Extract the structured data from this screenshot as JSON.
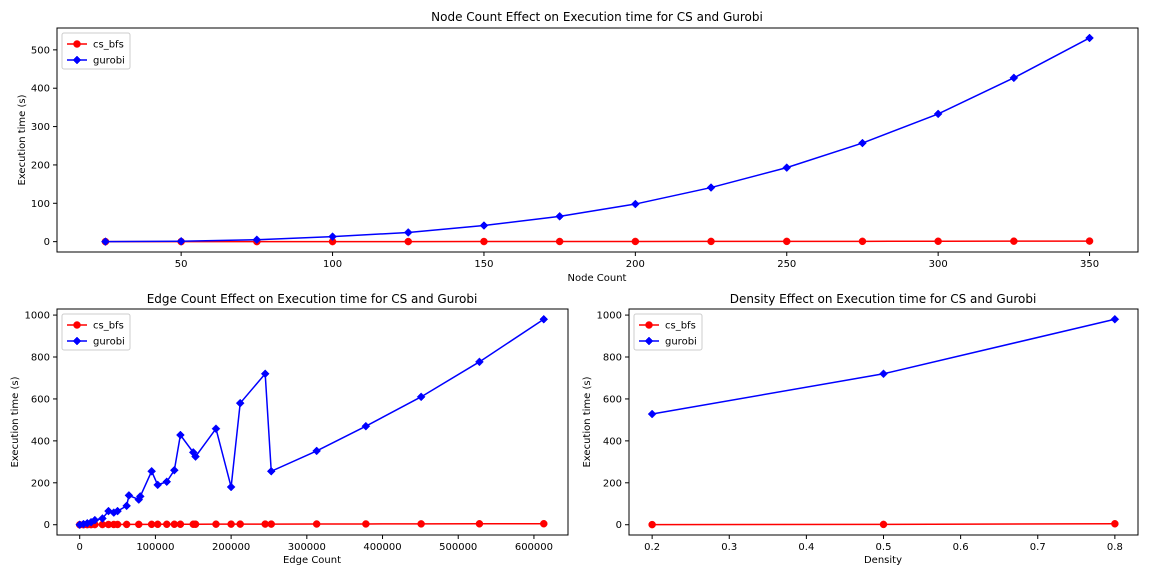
{
  "chart_data": [
    {
      "type": "line",
      "title": "Node Count Effect on Execution time for CS and Gurobi",
      "xlabel": "Node Count",
      "ylabel": "Execution time (s)",
      "xlim": [
        9,
        366
      ],
      "ylim": [
        -27,
        557
      ],
      "xticks": [
        50,
        100,
        150,
        200,
        250,
        300,
        350
      ],
      "yticks": [
        0,
        100,
        200,
        300,
        400,
        500
      ],
      "legend": "top-left",
      "series": [
        {
          "name": "cs_bfs",
          "color": "#ff0000",
          "marker": "circle",
          "x": [
            25,
            50,
            75,
            100,
            125,
            150,
            175,
            200,
            225,
            250,
            275,
            300,
            325,
            350
          ],
          "y": [
            0.02,
            0.05,
            0.1,
            0.15,
            0.2,
            0.3,
            0.4,
            0.5,
            0.6,
            0.7,
            0.8,
            1.0,
            1.2,
            1.5
          ]
        },
        {
          "name": "gurobi",
          "color": "#0000ff",
          "marker": "diamond",
          "x": [
            25,
            50,
            75,
            100,
            125,
            150,
            175,
            200,
            225,
            250,
            275,
            300,
            325,
            350
          ],
          "y": [
            0,
            1,
            5,
            13,
            24,
            42,
            66,
            98,
            141,
            193,
            257,
            333,
            427,
            531
          ]
        }
      ]
    },
    {
      "type": "line",
      "title": "Edge Count Effect on Execution time for CS and Gurobi",
      "xlabel": "Edge Count",
      "ylabel": "Execution time (s)",
      "xlim": [
        -30000,
        645000
      ],
      "ylim": [
        -49,
        1029
      ],
      "xticks": [
        0,
        100000,
        200000,
        300000,
        400000,
        500000,
        600000
      ],
      "yticks": [
        0,
        200,
        400,
        600,
        800,
        1000
      ],
      "legend": "top-left",
      "series": [
        {
          "name": "cs_bfs",
          "color": "#ff0000",
          "marker": "circle",
          "x": [
            0,
            5000,
            10000,
            15000,
            20000,
            30000,
            38000,
            45000,
            50000,
            62000,
            78000,
            95000,
            103000,
            115000,
            125000,
            133000,
            150000,
            153000,
            180000,
            200000,
            212000,
            245000,
            253000,
            313000,
            378000,
            451000,
            528000,
            613000
          ],
          "y": [
            0,
            0.2,
            0.4,
            0.5,
            0.7,
            0.9,
            1.1,
            1.2,
            1.3,
            1.5,
            1.7,
            1.9,
            2.0,
            2.1,
            2.2,
            2.3,
            2.4,
            2.4,
            2.6,
            2.8,
            2.9,
            3.1,
            3.0,
            3.4,
            3.7,
            4.0,
            4.4,
            4.8
          ]
        },
        {
          "name": "gurobi",
          "color": "#0000ff",
          "marker": "diamond",
          "x": [
            0,
            5000,
            10000,
            15000,
            20000,
            30000,
            38000,
            45000,
            50000,
            62000,
            65000,
            78000,
            80000,
            95000,
            103000,
            115000,
            125000,
            133000,
            150000,
            153000,
            180000,
            200000,
            212000,
            245000,
            253000,
            313000,
            378000,
            451000,
            528000,
            613000
          ],
          "y": [
            0,
            3,
            7,
            12,
            22,
            30,
            65,
            58,
            65,
            90,
            140,
            120,
            135,
            255,
            190,
            205,
            260,
            428,
            345,
            325,
            458,
            180,
            580,
            720,
            255,
            352,
            470,
            610,
            777,
            980
          ]
        }
      ]
    },
    {
      "type": "line",
      "title": "Density Effect on Execution time for CS and Gurobi",
      "xlabel": "Density",
      "ylabel": "Execution time (s)",
      "xlim": [
        0.17,
        0.83
      ],
      "ylim": [
        -49,
        1029
      ],
      "xticks": [
        0.2,
        0.3,
        0.4,
        0.5,
        0.6,
        0.7,
        0.8
      ],
      "yticks": [
        0,
        200,
        400,
        600,
        800,
        1000
      ],
      "legend": "top-left",
      "series": [
        {
          "name": "cs_bfs",
          "color": "#ff0000",
          "marker": "circle",
          "x": [
            0.2,
            0.5,
            0.8
          ],
          "y": [
            0.5,
            1.5,
            4.5
          ]
        },
        {
          "name": "gurobi",
          "color": "#0000ff",
          "marker": "diamond",
          "x": [
            0.2,
            0.5,
            0.8
          ],
          "y": [
            528,
            720,
            980
          ]
        }
      ]
    }
  ]
}
